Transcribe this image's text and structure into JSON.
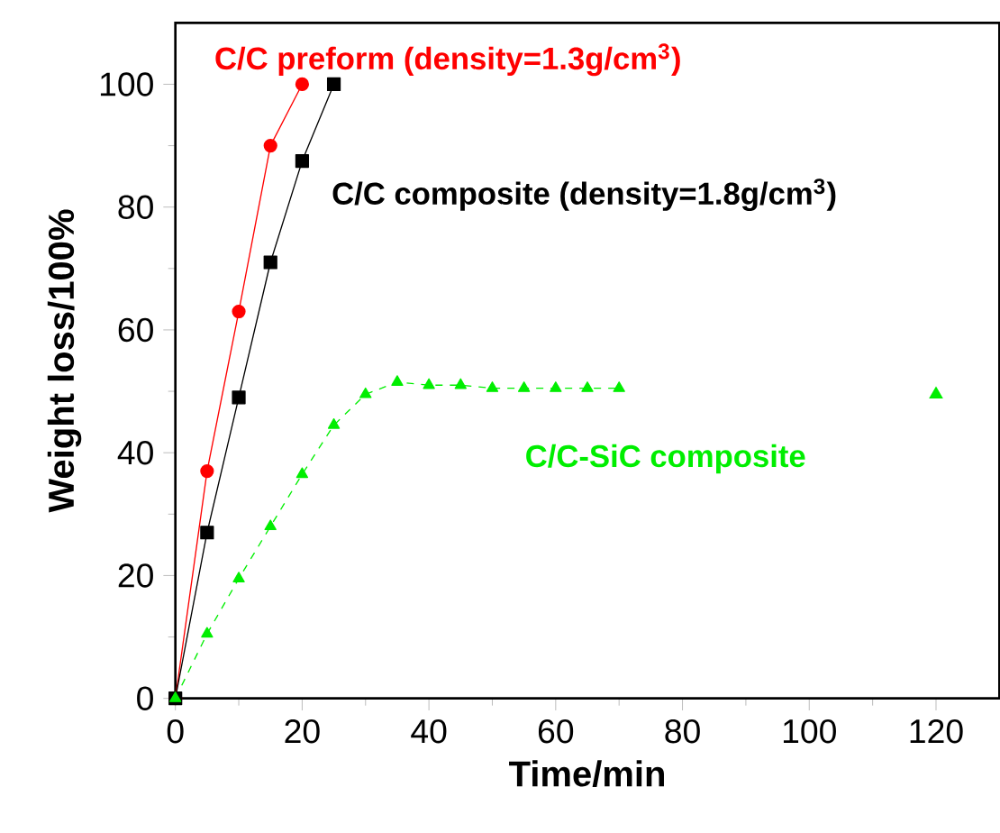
{
  "chart_data": {
    "type": "line",
    "xlabel": "Time/min",
    "ylabel": "Weight loss/100%",
    "xlim": [
      0,
      130
    ],
    "ylim": [
      0,
      110
    ],
    "xticks": [
      0,
      20,
      40,
      60,
      80,
      100,
      120
    ],
    "yticks": [
      0,
      20,
      40,
      60,
      80,
      100
    ],
    "series": [
      {
        "name": "C/C preform (density=1.3g/cm$^{3}$)",
        "color": "#ff0000",
        "marker": "circle",
        "line_style": "solid",
        "x": [
          0,
          5,
          10,
          15,
          20
        ],
        "values": [
          0,
          37,
          63,
          90,
          100
        ]
      },
      {
        "name": "C/C composite (density=1.8g/cm$^{3}$)",
        "color": "#000000",
        "marker": "square",
        "line_style": "solid",
        "x": [
          0,
          5,
          10,
          15,
          20,
          25
        ],
        "values": [
          0,
          27,
          49,
          71,
          87.5,
          100
        ]
      },
      {
        "name": "C/C-SiC composite",
        "color": "#00ee00",
        "marker": "triangle",
        "line_style": "dashed",
        "x": [
          0,
          5,
          10,
          15,
          20,
          25,
          30,
          35,
          40,
          45,
          50,
          55,
          60,
          65,
          70
        ],
        "values": [
          0,
          10.5,
          19.5,
          28,
          36.5,
          44.5,
          49.5,
          51.5,
          51,
          51,
          50.5,
          50.5,
          50.5,
          50.5,
          50.5
        ]
      },
      {
        "type": "scatter",
        "color": "#00ee00",
        "marker": "triangle",
        "x": [
          120
        ],
        "values": [
          49.5
        ]
      }
    ]
  }
}
